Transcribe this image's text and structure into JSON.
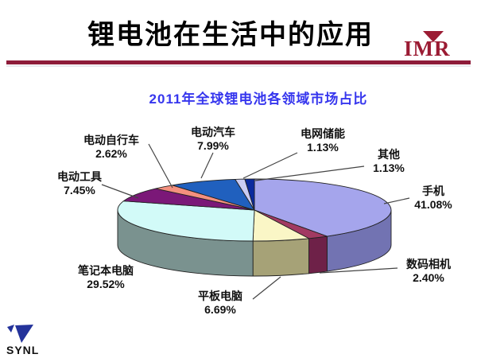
{
  "page": {
    "title": "锂电池在生活中的应用",
    "logo_text": "IMR",
    "footer_logo_text": "SYNL"
  },
  "colors": {
    "accent_rule": "#8E1C3A",
    "logo_red": "#9B1B33",
    "chart_title_blue": "#3636EE",
    "synl_blue": "#24339B"
  },
  "chart_data": {
    "type": "pie",
    "title": "2011年全球锂电池各领域市场占比",
    "style": "3d-pie",
    "start_angle_deg": 90,
    "direction": "clockwise",
    "legend": "none",
    "labels_shown": true,
    "slices": [
      {
        "id": "mobile-phone",
        "label": "手机",
        "value": 41.08,
        "pct_label": "41.08%",
        "color": "#A5A5EC",
        "side_color": "#7273B2"
      },
      {
        "id": "digital-camera",
        "label": "数码相机",
        "value": 2.4,
        "pct_label": "2.40%",
        "color": "#A23A62",
        "side_color": "#6E2148"
      },
      {
        "id": "tablet-pc",
        "label": "平板电脑",
        "value": 6.69,
        "pct_label": "6.69%",
        "color": "#FAF6C6",
        "side_color": "#A6A277"
      },
      {
        "id": "laptop",
        "label": "笔记本电脑",
        "value": 29.52,
        "pct_label": "29.52%",
        "color": "#D2FAF8",
        "side_color": "#7A928F"
      },
      {
        "id": "power-tools",
        "label": "电动工具",
        "value": 7.45,
        "pct_label": "7.45%",
        "color": "#7B1878",
        "side_color": "#5A1058"
      },
      {
        "id": "electric-bicycle",
        "label": "电动自行车",
        "value": 2.62,
        "pct_label": "2.62%",
        "color": "#F4907E",
        "side_color": "#C06858"
      },
      {
        "id": "electric-vehicle",
        "label": "电动汽车",
        "value": 7.99,
        "pct_label": "7.99%",
        "color": "#2060BE",
        "side_color": "#16448A"
      },
      {
        "id": "grid-storage",
        "label": "电网储能",
        "value": 1.13,
        "pct_label": "1.13%",
        "color": "#C9CCF4",
        "side_color": "#9898C8"
      },
      {
        "id": "others",
        "label": "其他",
        "value": 1.13,
        "pct_label": "1.13%",
        "color": "#0A2A9E",
        "side_color": "#071F70"
      }
    ]
  }
}
